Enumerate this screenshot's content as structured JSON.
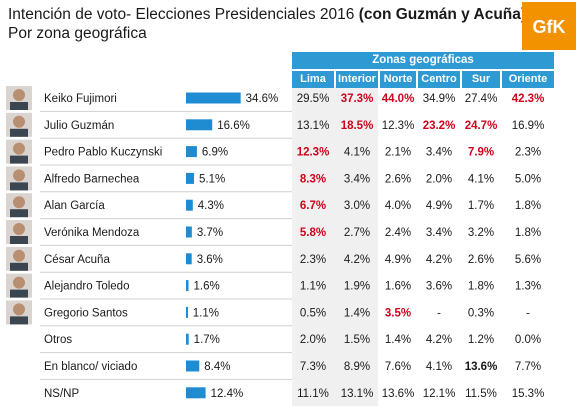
{
  "header": {
    "title_main": "Intención de voto- Elecciones Presidenciales 2016 ",
    "title_bold": "(con Guzmán y Acuña)",
    "subtitle": "Por zona geográfica",
    "logo_text": "GfK"
  },
  "colors": {
    "accent": "#2e9ad3",
    "bar": "#1f8bd0",
    "highlight": "#d0021b",
    "logo_orange": "#f39200"
  },
  "chart_data": {
    "type": "table",
    "group_header": "Zonas geográficas",
    "columns": [
      "Lima",
      "Interior",
      "Norte",
      "Centro",
      "Sur",
      "Oriente"
    ],
    "rows": [
      {
        "name": "Keiko Fujimori",
        "total": 34.6,
        "total_label": "34.6%",
        "zones": [
          "29.5%",
          "37.3%",
          "44.0%",
          "34.9%",
          "27.4%",
          "42.3%"
        ],
        "bold": [
          false,
          true,
          true,
          false,
          false,
          true
        ],
        "red": [
          false,
          true,
          true,
          false,
          false,
          true
        ]
      },
      {
        "name": "Julio Guzmán",
        "total": 16.6,
        "total_label": "16.6%",
        "zones": [
          "13.1%",
          "18.5%",
          "12.3%",
          "23.2%",
          "24.7%",
          "16.9%"
        ],
        "bold": [
          false,
          true,
          false,
          true,
          true,
          false
        ],
        "red": [
          false,
          true,
          false,
          true,
          true,
          false
        ]
      },
      {
        "name": "Pedro Pablo Kuczynski",
        "total": 6.9,
        "total_label": "6.9%",
        "zones": [
          "12.3%",
          "4.1%",
          "2.1%",
          "3.4%",
          "7.9%",
          "2.3%"
        ],
        "bold": [
          true,
          false,
          false,
          false,
          true,
          false
        ],
        "red": [
          true,
          false,
          false,
          false,
          true,
          false
        ]
      },
      {
        "name": "Alfredo Barnechea",
        "total": 5.1,
        "total_label": "5.1%",
        "zones": [
          "8.3%",
          "3.4%",
          "2.6%",
          "2.0%",
          "4.1%",
          "5.0%"
        ],
        "bold": [
          true,
          false,
          false,
          false,
          false,
          false
        ],
        "red": [
          true,
          false,
          false,
          false,
          false,
          false
        ]
      },
      {
        "name": "Alan García",
        "total": 4.3,
        "total_label": "4.3%",
        "zones": [
          "6.7%",
          "3.0%",
          "4.0%",
          "4.9%",
          "1.7%",
          "1.8%"
        ],
        "bold": [
          true,
          false,
          false,
          false,
          false,
          false
        ],
        "red": [
          true,
          false,
          false,
          false,
          false,
          false
        ]
      },
      {
        "name": "Verónika Mendoza",
        "total": 3.7,
        "total_label": "3.7%",
        "zones": [
          "5.8%",
          "2.7%",
          "2.4%",
          "3.4%",
          "3.2%",
          "1.8%"
        ],
        "bold": [
          true,
          false,
          false,
          false,
          false,
          false
        ],
        "red": [
          true,
          false,
          false,
          false,
          false,
          false
        ]
      },
      {
        "name": "César Acuña",
        "total": 3.6,
        "total_label": "3.6%",
        "zones": [
          "2.3%",
          "4.2%",
          "4.9%",
          "4.2%",
          "2.6%",
          "5.6%"
        ],
        "bold": [
          false,
          false,
          false,
          false,
          false,
          false
        ],
        "red": [
          false,
          false,
          false,
          false,
          false,
          false
        ]
      },
      {
        "name": "Alejandro Toledo",
        "total": 1.6,
        "total_label": "1.6%",
        "zones": [
          "1.1%",
          "1.9%",
          "1.6%",
          "3.6%",
          "1.8%",
          "1.3%"
        ],
        "bold": [
          false,
          false,
          false,
          false,
          false,
          false
        ],
        "red": [
          false,
          false,
          false,
          false,
          false,
          false
        ]
      },
      {
        "name": "Gregorio Santos",
        "total": 1.1,
        "total_label": "1.1%",
        "zones": [
          "0.5%",
          "1.4%",
          "3.5%",
          "-",
          "0.3%",
          "-"
        ],
        "bold": [
          false,
          false,
          true,
          false,
          false,
          false
        ],
        "red": [
          false,
          false,
          true,
          false,
          false,
          false
        ]
      },
      {
        "name": "Otros",
        "total": 1.7,
        "total_label": "1.7%",
        "zones": [
          "2.0%",
          "1.5%",
          "1.4%",
          "4.2%",
          "1.2%",
          "0.0%"
        ],
        "bold": [
          false,
          false,
          false,
          false,
          false,
          false
        ],
        "red": [
          false,
          false,
          false,
          false,
          false,
          false
        ]
      },
      {
        "name": "En blanco/ viciado",
        "total": 8.4,
        "total_label": "8.4%",
        "zones": [
          "7.3%",
          "8.9%",
          "7.6%",
          "4.1%",
          "13.6%",
          "7.7%"
        ],
        "bold": [
          false,
          false,
          false,
          false,
          true,
          false
        ],
        "red": [
          false,
          false,
          false,
          false,
          false,
          false
        ]
      },
      {
        "name": "NS/NP",
        "total": 12.4,
        "total_label": "12.4%",
        "zones": [
          "11.1%",
          "13.1%",
          "13.6%",
          "12.1%",
          "11.5%",
          "15.3%"
        ],
        "bold": [
          false,
          false,
          false,
          false,
          false,
          false
        ],
        "red": [
          false,
          false,
          false,
          false,
          false,
          false
        ]
      }
    ]
  }
}
